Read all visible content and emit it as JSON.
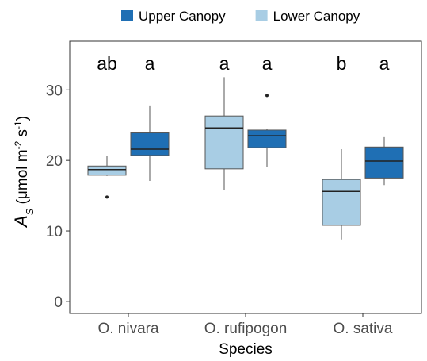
{
  "chart_data": {
    "type": "box",
    "categories": [
      "O. nivara",
      "O. rufipogon",
      "O. sativa"
    ],
    "xlabel": "Species",
    "ylabel_parts": [
      "A",
      "S",
      " (μmol m",
      "-2",
      " s",
      "-1",
      ")"
    ],
    "ylim": [
      -1.7,
      36.9
    ],
    "yticks": [
      0,
      10,
      20,
      30
    ],
    "letters": [
      [
        "a",
        "a",
        "a"
      ],
      [
        "ab",
        "a",
        "b"
      ]
    ],
    "legend": "top",
    "series": [
      {
        "name": "Upper Canopy",
        "color": "#1f6fb4",
        "boxes": [
          {
            "whislo": 17.1,
            "q1": 20.7,
            "med": 21.6,
            "q3": 23.9,
            "whishi": 27.8,
            "fliers": []
          },
          {
            "whislo": 19.1,
            "q1": 21.8,
            "med": 23.5,
            "q3": 24.3,
            "whishi": 24.5,
            "fliers": [
              29.2
            ]
          },
          {
            "whislo": 16.5,
            "q1": 17.5,
            "med": 19.9,
            "q3": 21.9,
            "whishi": 23.3,
            "fliers": []
          }
        ]
      },
      {
        "name": "Lower Canopy",
        "color": "#a8cde4",
        "boxes": [
          {
            "whislo": 17.8,
            "q1": 17.9,
            "med": 18.7,
            "q3": 19.2,
            "whishi": 20.6,
            "fliers": [
              14.8
            ]
          },
          {
            "whislo": 15.8,
            "q1": 18.8,
            "med": 24.6,
            "q3": 26.3,
            "whishi": 31.8,
            "fliers": []
          },
          {
            "whislo": 8.8,
            "q1": 10.8,
            "med": 15.6,
            "q3": 17.3,
            "whishi": 21.6,
            "fliers": []
          }
        ]
      }
    ]
  }
}
